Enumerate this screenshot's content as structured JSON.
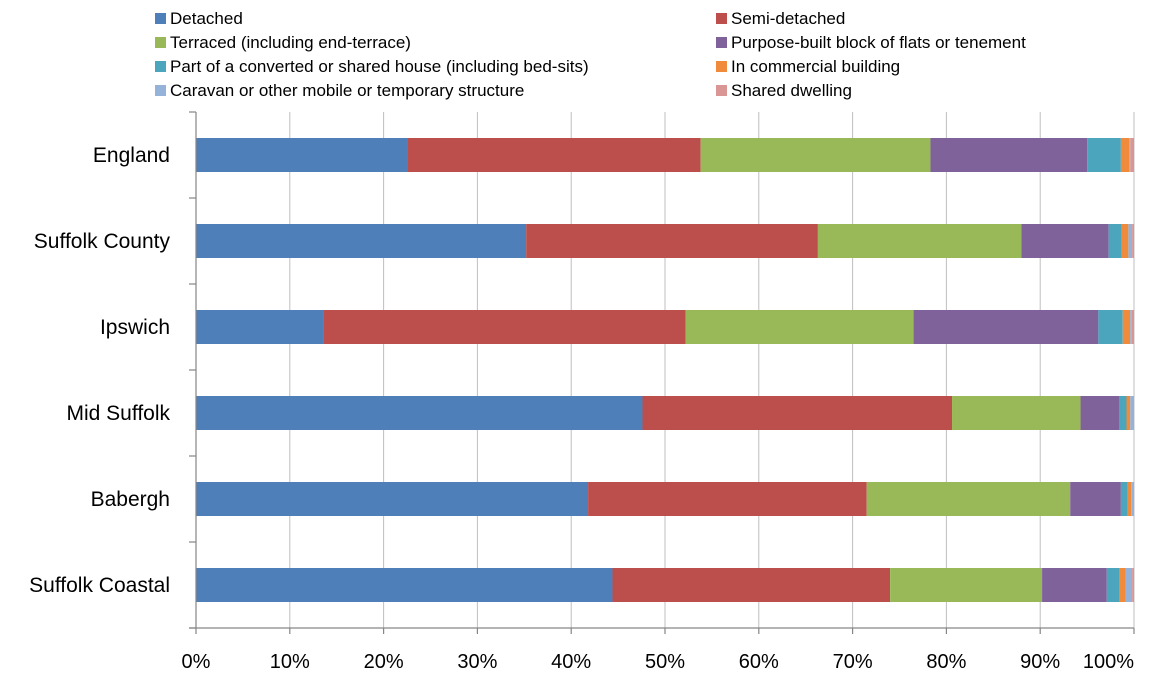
{
  "chart_data": {
    "type": "bar",
    "orientation": "horizontal",
    "stacked": "percent",
    "categories": [
      "England",
      "Suffolk County",
      "Ipswich",
      "Mid Suffolk",
      "Babergh",
      "Suffolk Coastal"
    ],
    "series": [
      {
        "name": "Detached",
        "color": "#4f7fb8",
        "values": [
          22.6,
          35.2,
          13.6,
          47.6,
          41.8,
          44.4
        ]
      },
      {
        "name": "Semi-detached",
        "color": "#bc4e4c",
        "values": [
          31.2,
          31.1,
          38.6,
          33.0,
          29.7,
          29.6
        ]
      },
      {
        "name": "Terraced (including end-terrace)",
        "color": "#99b958",
        "values": [
          24.5,
          21.7,
          24.3,
          13.7,
          21.7,
          16.2
        ]
      },
      {
        "name": "Purpose-built block of flats or tenement",
        "color": "#7f629a",
        "values": [
          16.7,
          9.3,
          19.7,
          4.1,
          5.4,
          6.9
        ]
      },
      {
        "name": "Part of a converted or shared house (including bed-sits)",
        "color": "#4aa5bd",
        "values": [
          3.6,
          1.4,
          2.6,
          0.8,
          0.7,
          1.3
        ]
      },
      {
        "name": "In commercial building",
        "color": "#ef8b3a",
        "values": [
          0.9,
          0.7,
          0.8,
          0.4,
          0.4,
          0.7
        ]
      },
      {
        "name": "Caravan or other mobile or temporary structure",
        "color": "#95b3d8",
        "values": [
          0.1,
          0.4,
          0.1,
          0.4,
          0.2,
          0.7
        ]
      },
      {
        "name": "Shared dwelling",
        "color": "#d99694",
        "values": [
          0.4,
          0.2,
          0.3,
          0.0,
          0.1,
          0.2
        ]
      }
    ],
    "x_ticks": [
      "0%",
      "10%",
      "20%",
      "30%",
      "40%",
      "50%",
      "60%",
      "70%",
      "80%",
      "90%",
      "100%"
    ],
    "xlim": [
      0,
      100
    ],
    "title": "",
    "xlabel": "",
    "ylabel": "",
    "grid": true,
    "legend": "top"
  }
}
